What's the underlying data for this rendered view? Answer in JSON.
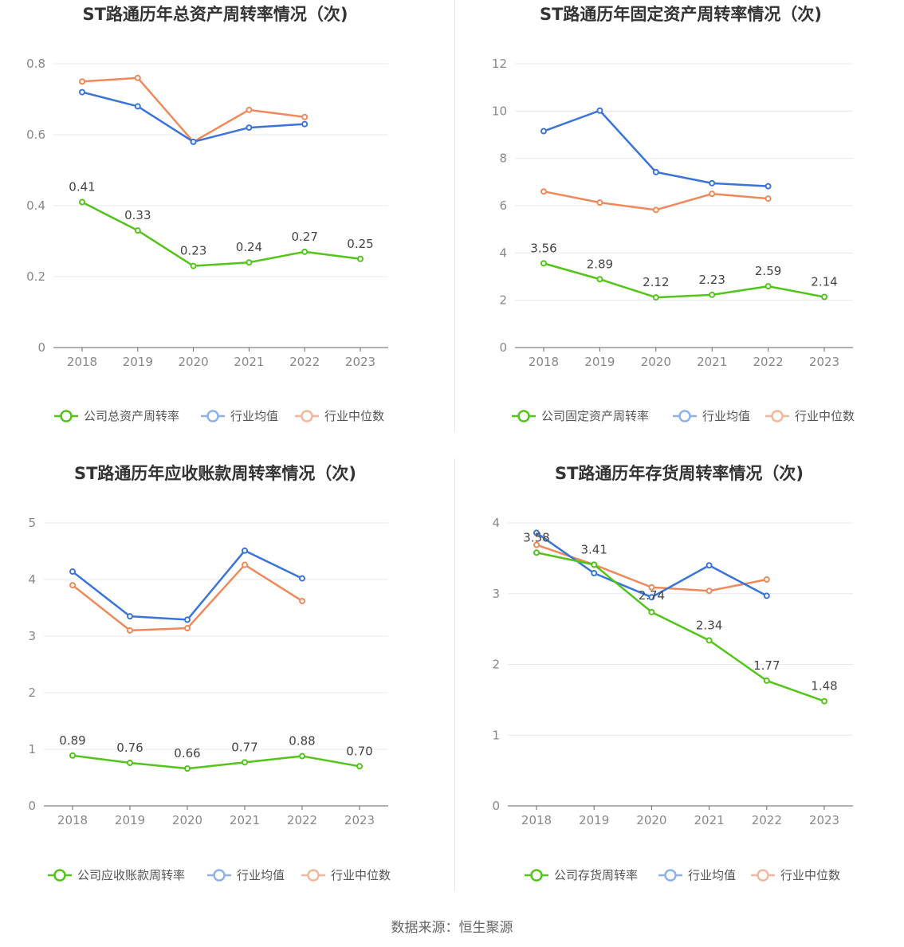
{
  "source": "数据来源：恒生聚源",
  "colors": {
    "company": "#52c41a",
    "average": "#3b74d9",
    "median": "#f0895a",
    "grid": "#e4e8f0",
    "axis": "#666666"
  },
  "chart_data": [
    {
      "type": "line",
      "title": "ST路通历年总资产周转率情况（次)",
      "categories": [
        "2018",
        "2019",
        "2020",
        "2021",
        "2022",
        "2023"
      ],
      "ylim": [
        0,
        0.8
      ],
      "yticks": [
        "0",
        "0.2",
        "0.4",
        "0.6",
        "0.8"
      ],
      "grid": true,
      "legend_position": "bottom",
      "series": [
        {
          "name": "公司总资产周转率",
          "values": [
            0.41,
            0.33,
            0.23,
            0.24,
            0.27,
            0.25
          ],
          "labels": [
            "0.41",
            "0.33",
            "0.23",
            "0.24",
            "0.27",
            "0.25"
          ]
        },
        {
          "name": "行业均值",
          "values": [
            0.72,
            0.68,
            0.58,
            0.62,
            0.63,
            null
          ]
        },
        {
          "name": "行业中位数",
          "values": [
            0.75,
            0.76,
            0.58,
            0.67,
            0.65,
            null
          ]
        }
      ]
    },
    {
      "type": "line",
      "title": "ST路通历年固定资产周转率情况（次)",
      "categories": [
        "2018",
        "2019",
        "2020",
        "2021",
        "2022",
        "2023"
      ],
      "ylim": [
        0,
        12
      ],
      "yticks": [
        "0",
        "2",
        "4",
        "6",
        "8",
        "10",
        "12"
      ],
      "grid": true,
      "legend_position": "bottom",
      "series": [
        {
          "name": "公司固定资产周转率",
          "values": [
            3.56,
            2.89,
            2.12,
            2.23,
            2.59,
            2.14
          ],
          "labels": [
            "3.56",
            "2.89",
            "2.12",
            "2.23",
            "2.59",
            "2.14"
          ]
        },
        {
          "name": "行业均值",
          "values": [
            9.15,
            10.02,
            7.42,
            6.95,
            6.82,
            null
          ]
        },
        {
          "name": "行业中位数",
          "values": [
            6.6,
            6.13,
            5.82,
            6.5,
            6.3,
            null
          ]
        }
      ]
    },
    {
      "type": "line",
      "title": "ST路通历年应收账款周转率情况（次)",
      "categories": [
        "2018",
        "2019",
        "2020",
        "2021",
        "2022",
        "2023"
      ],
      "ylim": [
        0,
        5
      ],
      "yticks": [
        "0",
        "1",
        "2",
        "3",
        "4",
        "5"
      ],
      "grid": true,
      "legend_position": "bottom",
      "series": [
        {
          "name": "公司应收账款周转率",
          "values": [
            0.89,
            0.76,
            0.66,
            0.77,
            0.88,
            0.7
          ],
          "labels": [
            "0.89",
            "0.76",
            "0.66",
            "0.77",
            "0.88",
            "0.70"
          ]
        },
        {
          "name": "行业均值",
          "values": [
            4.14,
            3.35,
            3.29,
            4.51,
            4.02,
            null
          ]
        },
        {
          "name": "行业中位数",
          "values": [
            3.9,
            3.1,
            3.14,
            4.26,
            3.62,
            null
          ]
        }
      ]
    },
    {
      "type": "line",
      "title": "ST路通历年存货周转率情况（次)",
      "categories": [
        "2018",
        "2019",
        "2020",
        "2021",
        "2022",
        "2023"
      ],
      "ylim": [
        0,
        4
      ],
      "yticks": [
        "0",
        "1",
        "2",
        "3",
        "4"
      ],
      "grid": true,
      "legend_position": "bottom",
      "series": [
        {
          "name": "公司存货周转率",
          "values": [
            3.58,
            3.41,
            2.74,
            2.34,
            1.77,
            1.48
          ],
          "labels": [
            "3.58",
            "3.41",
            "2.74",
            "2.34",
            "1.77",
            "1.48"
          ]
        },
        {
          "name": "行业均值",
          "values": [
            3.86,
            3.29,
            2.95,
            3.4,
            2.97,
            null
          ]
        },
        {
          "name": "行业中位数",
          "values": [
            3.69,
            3.41,
            3.09,
            3.04,
            3.2,
            null
          ]
        }
      ]
    }
  ]
}
